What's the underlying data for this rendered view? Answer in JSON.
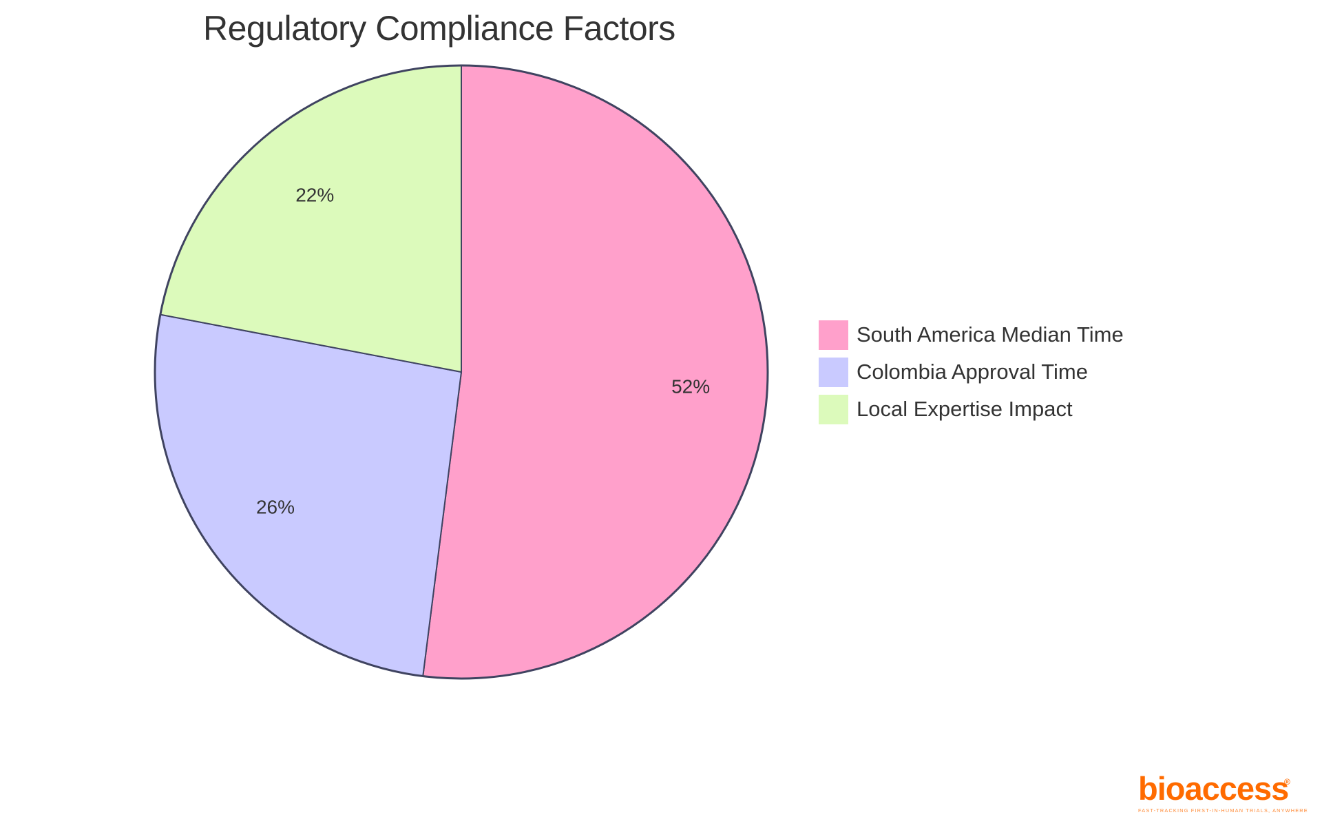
{
  "title": "Regulatory Compliance Factors",
  "chart_data": {
    "type": "pie",
    "title": "Regulatory Compliance Factors",
    "categories": [
      "South America Median Time",
      "Colombia Approval Time",
      "Local Expertise Impact"
    ],
    "values": [
      52,
      26,
      22
    ],
    "labels": [
      "52%",
      "26%",
      "22%"
    ],
    "colors": [
      "#ffa0cb",
      "#c9caff",
      "#dcfabb"
    ],
    "stroke_color": "#3f4360",
    "start_angle": "12 o'clock, clockwise",
    "legend_position": "right"
  },
  "legend": {
    "items": [
      {
        "label": "South America Median Time",
        "color": "#ffa0cb"
      },
      {
        "label": "Colombia Approval Time",
        "color": "#c9caff"
      },
      {
        "label": "Local Expertise Impact",
        "color": "#dcfabb"
      }
    ]
  },
  "logo": {
    "name": "bioaccess",
    "registered": "®",
    "tagline": "FAST-TRACKING FIRST-IN-HUMAN TRIALS, ANYWHERE",
    "color": "#ff6b00"
  }
}
